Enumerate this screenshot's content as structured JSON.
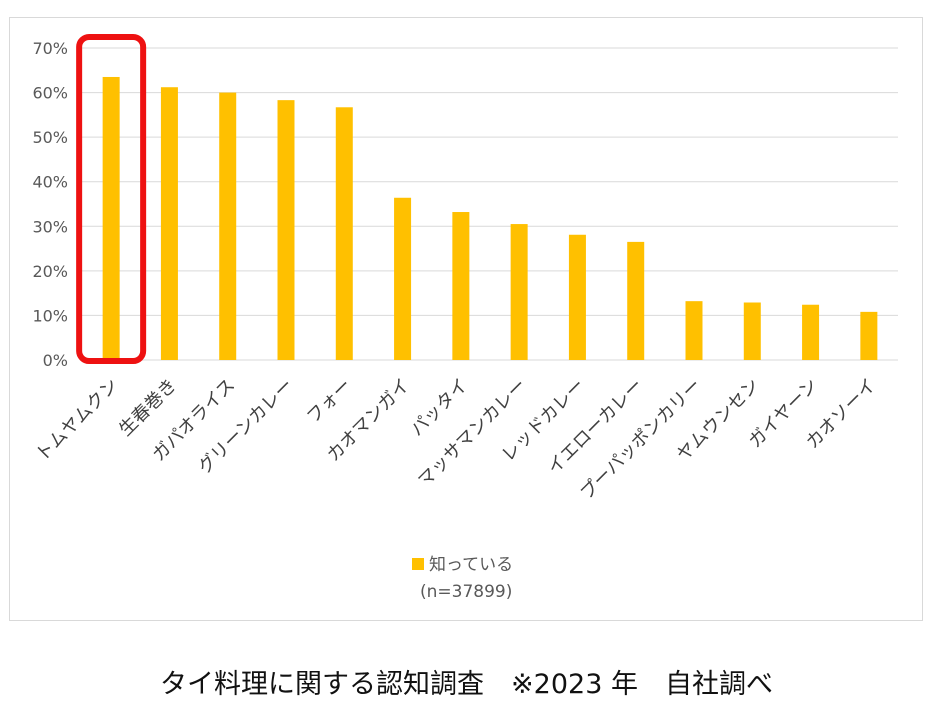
{
  "chart_data": {
    "type": "bar",
    "categories": [
      "トムヤムクン",
      "生春巻き",
      "ガパオライス",
      "グリーンカレー",
      "フォー",
      "カオマンガイ",
      "パッタイ",
      "マッサマンカレー",
      "レッドカレー",
      "イエローカレー",
      "プーパッポンカリー",
      "ヤムウンセン",
      "ガイヤーン",
      "カオソーイ"
    ],
    "series": [
      {
        "name": "知っている",
        "values": [
          63.5,
          61.2,
          60.0,
          58.3,
          56.7,
          36.4,
          33.2,
          30.5,
          28.1,
          26.5,
          13.2,
          12.9,
          12.4,
          10.8
        ]
      }
    ],
    "sample_note": "(n=37899)",
    "ylim": [
      0,
      70
    ],
    "yticks": [
      "0%",
      "10%",
      "20%",
      "30%",
      "40%",
      "50%",
      "60%",
      "70%"
    ],
    "grid": true,
    "legend_position": "bottom",
    "bar_color": "#FFC000",
    "highlight_index": 0,
    "highlight_color": "#EE1111"
  },
  "caption": "タイ料理に関する認知調査　※2023 年　自社調べ"
}
